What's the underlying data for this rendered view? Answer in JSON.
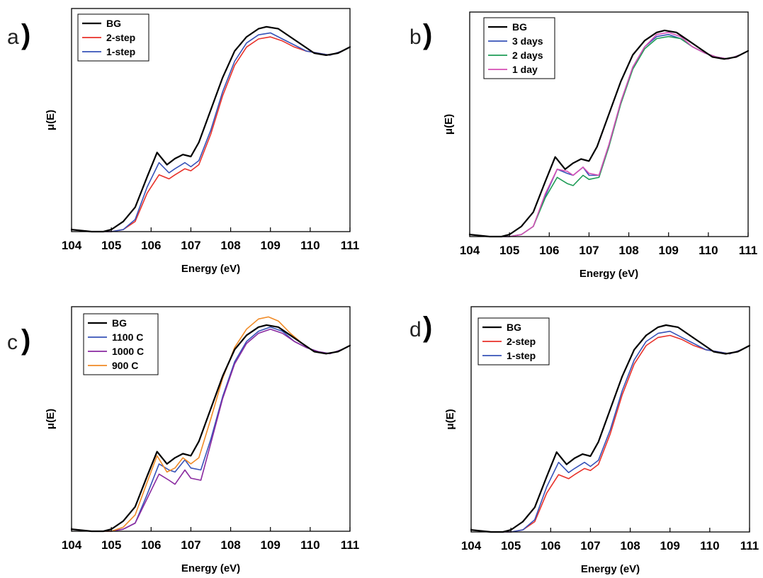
{
  "chart_data": [
    {
      "type": "line",
      "panel_label": "a",
      "xlabel": "Energy (eV)",
      "ylabel": "μ(E)",
      "xlim": [
        104,
        111
      ],
      "ylim": [
        0,
        1.1
      ],
      "x_ticks": [
        "104",
        "105",
        "106",
        "107",
        "108",
        "109",
        "110",
        "111"
      ],
      "legend_position": "top-left",
      "series": [
        {
          "name": "BG",
          "color": "#000000",
          "x": [
            104,
            104.5,
            104.8,
            105.0,
            105.3,
            105.6,
            105.9,
            106.15,
            106.4,
            106.6,
            106.8,
            107.0,
            107.2,
            107.5,
            107.8,
            108.1,
            108.4,
            108.7,
            108.9,
            109.2,
            109.5,
            109.8,
            110.1,
            110.4,
            110.7,
            111.0
          ],
          "y": [
            0.01,
            0.0,
            0.0,
            0.01,
            0.05,
            0.12,
            0.27,
            0.39,
            0.33,
            0.36,
            0.38,
            0.37,
            0.44,
            0.6,
            0.76,
            0.89,
            0.96,
            1.0,
            1.01,
            1.0,
            0.96,
            0.92,
            0.88,
            0.87,
            0.88,
            0.91
          ]
        },
        {
          "name": "2-step",
          "color": "#e8312a",
          "x": [
            104,
            104.5,
            104.8,
            105.0,
            105.3,
            105.6,
            105.9,
            106.2,
            106.45,
            106.6,
            106.85,
            107.0,
            107.2,
            107.5,
            107.8,
            108.1,
            108.4,
            108.7,
            109.0,
            109.3,
            109.6,
            109.9,
            110.2,
            110.5,
            110.8,
            111.0
          ],
          "y": [
            0.01,
            0.0,
            0.0,
            0.0,
            0.01,
            0.05,
            0.19,
            0.28,
            0.26,
            0.28,
            0.31,
            0.3,
            0.33,
            0.48,
            0.67,
            0.82,
            0.91,
            0.95,
            0.96,
            0.94,
            0.91,
            0.89,
            0.88,
            0.87,
            0.89,
            0.91
          ]
        },
        {
          "name": "1-step",
          "color": "#3752b8",
          "x": [
            104,
            104.5,
            104.8,
            105.0,
            105.3,
            105.6,
            105.9,
            106.2,
            106.45,
            106.6,
            106.85,
            107.0,
            107.2,
            107.5,
            107.8,
            108.1,
            108.4,
            108.7,
            109.0,
            109.3,
            109.6,
            109.9,
            110.2,
            110.5,
            110.8,
            111.0
          ],
          "y": [
            0.01,
            0.0,
            0.0,
            0.0,
            0.01,
            0.06,
            0.22,
            0.34,
            0.29,
            0.31,
            0.34,
            0.32,
            0.35,
            0.5,
            0.69,
            0.84,
            0.93,
            0.97,
            0.98,
            0.95,
            0.92,
            0.89,
            0.88,
            0.87,
            0.89,
            0.91
          ]
        }
      ]
    },
    {
      "type": "line",
      "panel_label": "b",
      "xlabel": "Energy (eV)",
      "ylabel": "μ(E)",
      "xlim": [
        104,
        111
      ],
      "ylim": [
        0,
        1.1
      ],
      "x_ticks": [
        "104",
        "105",
        "106",
        "107",
        "108",
        "109",
        "110",
        "111"
      ],
      "legend_position": "top-left",
      "series": [
        {
          "name": "BG",
          "color": "#000000",
          "x": [
            104,
            104.5,
            104.8,
            105.0,
            105.3,
            105.6,
            105.9,
            106.15,
            106.4,
            106.6,
            106.8,
            107.0,
            107.2,
            107.5,
            107.8,
            108.1,
            108.4,
            108.7,
            108.9,
            109.2,
            109.5,
            109.8,
            110.1,
            110.4,
            110.7,
            111.0
          ],
          "y": [
            0.01,
            0.0,
            0.0,
            0.01,
            0.05,
            0.12,
            0.27,
            0.39,
            0.33,
            0.36,
            0.38,
            0.37,
            0.44,
            0.6,
            0.76,
            0.89,
            0.96,
            1.0,
            1.01,
            1.0,
            0.96,
            0.92,
            0.88,
            0.87,
            0.88,
            0.91
          ]
        },
        {
          "name": "3 days",
          "color": "#3752b8",
          "x": [
            104,
            104.5,
            104.8,
            105.0,
            105.3,
            105.6,
            105.9,
            106.2,
            106.45,
            106.6,
            106.85,
            107.0,
            107.25,
            107.5,
            107.8,
            108.1,
            108.4,
            108.7,
            109.0,
            109.3,
            109.6,
            109.9,
            110.2,
            110.5,
            110.8,
            111.0
          ],
          "y": [
            0.01,
            0.0,
            0.0,
            0.0,
            0.01,
            0.05,
            0.2,
            0.33,
            0.31,
            0.3,
            0.34,
            0.3,
            0.3,
            0.45,
            0.66,
            0.83,
            0.93,
            0.98,
            0.99,
            0.97,
            0.93,
            0.9,
            0.88,
            0.87,
            0.89,
            0.91
          ]
        },
        {
          "name": "2 days",
          "color": "#1e9c56",
          "x": [
            104,
            104.5,
            104.8,
            105.0,
            105.3,
            105.6,
            105.9,
            106.2,
            106.45,
            106.6,
            106.85,
            107.0,
            107.25,
            107.5,
            107.8,
            108.1,
            108.4,
            108.7,
            109.0,
            109.3,
            109.6,
            109.9,
            110.2,
            110.5,
            110.8,
            111.0
          ],
          "y": [
            0.01,
            0.0,
            0.0,
            0.0,
            0.01,
            0.05,
            0.19,
            0.29,
            0.26,
            0.25,
            0.3,
            0.28,
            0.29,
            0.44,
            0.65,
            0.82,
            0.92,
            0.97,
            0.98,
            0.97,
            0.93,
            0.9,
            0.88,
            0.87,
            0.89,
            0.91
          ]
        },
        {
          "name": "1 day",
          "color": "#d64fb5",
          "x": [
            104,
            104.5,
            104.8,
            105.0,
            105.3,
            105.6,
            105.9,
            106.2,
            106.45,
            106.6,
            106.85,
            107.0,
            107.25,
            107.5,
            107.8,
            108.1,
            108.4,
            108.7,
            109.0,
            109.3,
            109.6,
            109.9,
            110.2,
            110.5,
            110.8,
            111.0
          ],
          "y": [
            0.01,
            0.0,
            0.0,
            0.0,
            0.01,
            0.05,
            0.21,
            0.33,
            0.32,
            0.3,
            0.34,
            0.31,
            0.3,
            0.45,
            0.66,
            0.83,
            0.93,
            0.99,
            1.0,
            0.98,
            0.93,
            0.9,
            0.88,
            0.87,
            0.89,
            0.91
          ]
        }
      ]
    },
    {
      "type": "line",
      "panel_label": "c",
      "xlabel": "Energy (eV)",
      "ylabel": "μ(E)",
      "xlim": [
        104,
        111
      ],
      "ylim": [
        0,
        1.1
      ],
      "x_ticks": [
        "104",
        "105",
        "106",
        "107",
        "108",
        "109",
        "110",
        "111"
      ],
      "legend_position": "top-left",
      "series": [
        {
          "name": "BG",
          "color": "#000000",
          "x": [
            104,
            104.5,
            104.8,
            105.0,
            105.3,
            105.6,
            105.9,
            106.15,
            106.4,
            106.6,
            106.8,
            107.0,
            107.2,
            107.5,
            107.8,
            108.1,
            108.4,
            108.7,
            108.9,
            109.2,
            109.5,
            109.8,
            110.1,
            110.4,
            110.7,
            111.0
          ],
          "y": [
            0.01,
            0.0,
            0.0,
            0.01,
            0.05,
            0.12,
            0.27,
            0.39,
            0.33,
            0.36,
            0.38,
            0.37,
            0.44,
            0.6,
            0.76,
            0.89,
            0.96,
            1.0,
            1.01,
            1.0,
            0.96,
            0.92,
            0.88,
            0.87,
            0.88,
            0.91
          ]
        },
        {
          "name": "1100 C",
          "color": "#3752b8",
          "x": [
            104,
            104.5,
            104.8,
            105.0,
            105.3,
            105.6,
            105.9,
            106.2,
            106.45,
            106.6,
            106.85,
            107.0,
            107.25,
            107.5,
            107.8,
            108.1,
            108.4,
            108.7,
            109.0,
            109.3,
            109.6,
            109.9,
            110.2,
            110.5,
            110.8,
            111.0
          ],
          "y": [
            0.01,
            0.0,
            0.0,
            0.0,
            0.01,
            0.04,
            0.18,
            0.33,
            0.3,
            0.29,
            0.35,
            0.31,
            0.3,
            0.45,
            0.66,
            0.83,
            0.93,
            0.98,
            1.0,
            0.98,
            0.93,
            0.9,
            0.88,
            0.87,
            0.89,
            0.91
          ]
        },
        {
          "name": "1000 C",
          "color": "#8a2aa0",
          "x": [
            104,
            104.5,
            104.8,
            105.0,
            105.3,
            105.6,
            105.9,
            106.2,
            106.45,
            106.6,
            106.85,
            107.0,
            107.25,
            107.5,
            107.8,
            108.1,
            108.4,
            108.7,
            109.0,
            109.3,
            109.6,
            109.9,
            110.2,
            110.5,
            110.8,
            111.0
          ],
          "y": [
            0.01,
            0.0,
            0.0,
            0.0,
            0.01,
            0.04,
            0.16,
            0.28,
            0.25,
            0.23,
            0.3,
            0.26,
            0.25,
            0.43,
            0.65,
            0.82,
            0.92,
            0.97,
            0.99,
            0.97,
            0.93,
            0.9,
            0.88,
            0.87,
            0.89,
            0.91
          ]
        },
        {
          "name": "900 C",
          "color": "#f08a25",
          "x": [
            104,
            104.5,
            104.8,
            105.0,
            105.3,
            105.6,
            105.9,
            106.15,
            106.4,
            106.6,
            106.8,
            107.0,
            107.2,
            107.5,
            107.8,
            108.1,
            108.4,
            108.7,
            108.95,
            109.2,
            109.5,
            109.8,
            110.1,
            110.4,
            110.7,
            111.0
          ],
          "y": [
            0.01,
            0.0,
            0.0,
            0.0,
            0.02,
            0.08,
            0.24,
            0.37,
            0.29,
            0.31,
            0.36,
            0.33,
            0.36,
            0.55,
            0.75,
            0.9,
            0.99,
            1.04,
            1.05,
            1.03,
            0.97,
            0.92,
            0.88,
            0.87,
            0.88,
            0.91
          ]
        }
      ]
    },
    {
      "type": "line",
      "panel_label": "d",
      "xlabel": "Energy (eV)",
      "ylabel": "μ(E)",
      "xlim": [
        104,
        111
      ],
      "ylim": [
        0,
        1.1
      ],
      "x_ticks": [
        "104",
        "105",
        "106",
        "107",
        "108",
        "109",
        "110",
        "111"
      ],
      "legend_position": "top-left",
      "series": [
        {
          "name": "BG",
          "color": "#000000",
          "x": [
            104,
            104.5,
            104.8,
            105.0,
            105.3,
            105.6,
            105.9,
            106.15,
            106.4,
            106.6,
            106.8,
            107.0,
            107.2,
            107.5,
            107.8,
            108.1,
            108.4,
            108.7,
            108.9,
            109.2,
            109.5,
            109.8,
            110.1,
            110.4,
            110.7,
            111.0
          ],
          "y": [
            0.01,
            0.0,
            0.0,
            0.01,
            0.05,
            0.12,
            0.27,
            0.39,
            0.33,
            0.36,
            0.38,
            0.37,
            0.44,
            0.6,
            0.76,
            0.89,
            0.96,
            1.0,
            1.01,
            1.0,
            0.96,
            0.92,
            0.88,
            0.87,
            0.88,
            0.91
          ]
        },
        {
          "name": "2-step",
          "color": "#e8312a",
          "x": [
            104,
            104.5,
            104.8,
            105.0,
            105.3,
            105.6,
            105.9,
            106.2,
            106.45,
            106.6,
            106.85,
            107.0,
            107.2,
            107.5,
            107.8,
            108.1,
            108.4,
            108.7,
            109.0,
            109.3,
            109.6,
            109.9,
            110.2,
            110.5,
            110.8,
            111.0
          ],
          "y": [
            0.01,
            0.0,
            0.0,
            0.0,
            0.01,
            0.05,
            0.19,
            0.28,
            0.26,
            0.28,
            0.31,
            0.3,
            0.33,
            0.48,
            0.67,
            0.82,
            0.91,
            0.95,
            0.96,
            0.94,
            0.91,
            0.89,
            0.88,
            0.87,
            0.89,
            0.91
          ]
        },
        {
          "name": "1-step",
          "color": "#3752b8",
          "x": [
            104,
            104.5,
            104.8,
            105.0,
            105.3,
            105.6,
            105.9,
            106.2,
            106.45,
            106.6,
            106.85,
            107.0,
            107.2,
            107.5,
            107.8,
            108.1,
            108.4,
            108.7,
            109.0,
            109.3,
            109.6,
            109.9,
            110.2,
            110.5,
            110.8,
            111.0
          ],
          "y": [
            0.01,
            0.0,
            0.0,
            0.0,
            0.01,
            0.06,
            0.22,
            0.34,
            0.29,
            0.31,
            0.34,
            0.32,
            0.35,
            0.5,
            0.69,
            0.84,
            0.93,
            0.97,
            0.98,
            0.95,
            0.92,
            0.89,
            0.88,
            0.87,
            0.89,
            0.91
          ]
        }
      ]
    }
  ]
}
